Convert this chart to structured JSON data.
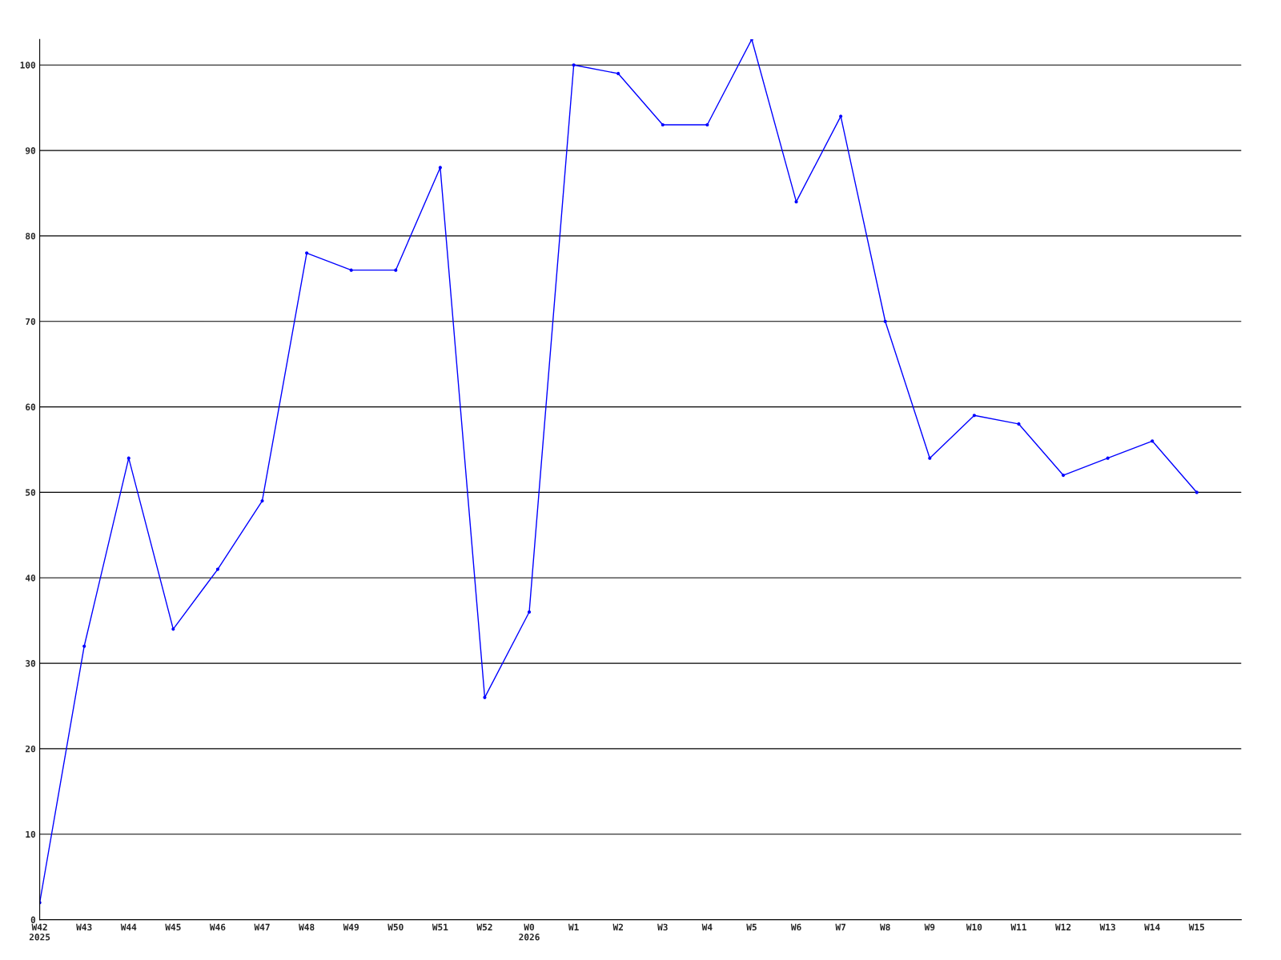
{
  "chart_data": {
    "type": "line",
    "categories": [
      "W42\n2025",
      "W43",
      "W44",
      "W45",
      "W46",
      "W47",
      "W48",
      "W49",
      "W50",
      "W51",
      "W52",
      "W0\n2026",
      "W1",
      "W2",
      "W3",
      "W4",
      "W5",
      "W6",
      "W7",
      "W8",
      "W9",
      "W10",
      "W11",
      "W12",
      "W13",
      "W14",
      "W15"
    ],
    "series": [
      {
        "color": "#0000ff",
        "values": [
          2,
          32,
          54,
          34,
          41,
          49,
          78,
          76,
          76,
          88,
          26,
          36,
          100,
          99,
          93,
          93,
          103,
          84,
          94,
          70,
          54,
          59,
          58,
          52,
          54,
          56,
          50
        ]
      }
    ],
    "ylim": [
      0,
      103
    ],
    "yticks": [
      0,
      10,
      20,
      30,
      40,
      50,
      60,
      70,
      80,
      90,
      100
    ],
    "grid": "y",
    "marker": "circle",
    "line_style": "solid",
    "legend": false
  }
}
